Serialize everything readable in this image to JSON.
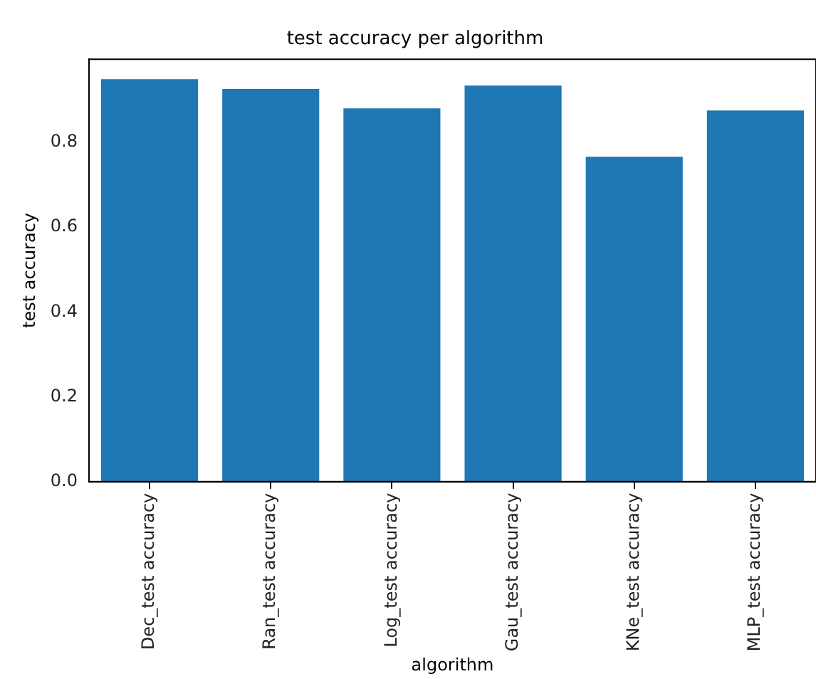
{
  "chart_data": {
    "type": "bar",
    "title": "test accuracy per algorithm",
    "xlabel": "algorithm",
    "ylabel": "test accuracy",
    "categories": [
      "Dec_test accuracy",
      "Ran_test accuracy",
      "Log_test accuracy",
      "Gau_test accuracy",
      "KNe_test accuracy",
      "MLP_test accuracy"
    ],
    "values": [
      0.949,
      0.926,
      0.88,
      0.934,
      0.766,
      0.875
    ],
    "color": "#1f77b4",
    "ylim": [
      0,
      0.996
    ],
    "yticks": [
      {
        "value": 0,
        "label": "0.0"
      },
      {
        "value": 0.2,
        "label": "0.2"
      },
      {
        "value": 0.4,
        "label": "0.4"
      },
      {
        "value": 0.6,
        "label": "0.6"
      },
      {
        "value": 0.8,
        "label": "0.8"
      }
    ],
    "grid": false
  }
}
